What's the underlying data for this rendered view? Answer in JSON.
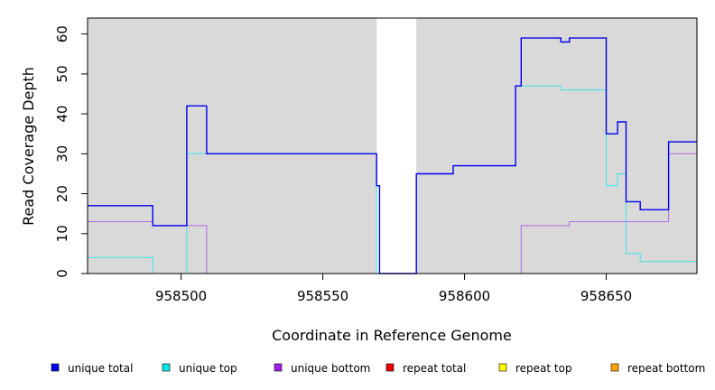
{
  "chart_data": {
    "type": "line",
    "step": true,
    "xlabel": "Coordinate in Reference Genome",
    "ylabel": "Read Coverage Depth",
    "xlim": [
      958467,
      958682
    ],
    "ylim": [
      0,
      64
    ],
    "x_ticks": [
      958500,
      958550,
      958600,
      958650
    ],
    "y_ticks": [
      0,
      10,
      20,
      30,
      40,
      50,
      60
    ],
    "shaded_regions": [
      {
        "from": 958467,
        "to": 958569,
        "color": "#d9d9d9"
      },
      {
        "from": 958583,
        "to": 958682,
        "color": "#d9d9d9"
      }
    ],
    "legend_position": "bottom",
    "series": [
      {
        "name": "unique total",
        "color": "#0000ee",
        "legend_color": "#0000ee",
        "points": [
          [
            958467,
            17
          ],
          [
            958490,
            17
          ],
          [
            958490,
            12
          ],
          [
            958502,
            12
          ],
          [
            958502,
            42
          ],
          [
            958509,
            42
          ],
          [
            958509,
            30
          ],
          [
            958569,
            30
          ],
          [
            958569,
            22
          ],
          [
            958570,
            22
          ],
          [
            958570,
            0
          ],
          [
            958583,
            0
          ],
          [
            958583,
            25
          ],
          [
            958596,
            25
          ],
          [
            958596,
            27
          ],
          [
            958618,
            27
          ],
          [
            958618,
            47
          ],
          [
            958620,
            47
          ],
          [
            958620,
            59
          ],
          [
            958634,
            59
          ],
          [
            958634,
            58
          ],
          [
            958637,
            58
          ],
          [
            958637,
            59
          ],
          [
            958650,
            59
          ],
          [
            958650,
            35
          ],
          [
            958654,
            35
          ],
          [
            958654,
            38
          ],
          [
            958657,
            38
          ],
          [
            958657,
            18
          ],
          [
            958662,
            18
          ],
          [
            958662,
            16
          ],
          [
            958672,
            16
          ],
          [
            958672,
            33
          ],
          [
            958682,
            33
          ]
        ]
      },
      {
        "name": "unique top",
        "color": "#3be6e6",
        "legend_color": "#00e5e5",
        "points": [
          [
            958467,
            4
          ],
          [
            958490,
            4
          ],
          [
            958490,
            0
          ],
          [
            958502,
            0
          ],
          [
            958502,
            30
          ],
          [
            958569,
            30
          ],
          [
            958569,
            0
          ],
          [
            958583,
            0
          ],
          [
            958583,
            25
          ],
          [
            958596,
            25
          ],
          [
            958596,
            27
          ],
          [
            958618,
            27
          ],
          [
            958618,
            47
          ],
          [
            958634,
            47
          ],
          [
            958634,
            46
          ],
          [
            958650,
            46
          ],
          [
            958650,
            22
          ],
          [
            958654,
            22
          ],
          [
            958654,
            25
          ],
          [
            958657,
            25
          ],
          [
            958657,
            5
          ],
          [
            958662,
            5
          ],
          [
            958662,
            3
          ],
          [
            958682,
            3
          ]
        ]
      },
      {
        "name": "unique bottom",
        "color": "#b266e6",
        "legend_color": "#a020f0",
        "points": [
          [
            958467,
            13
          ],
          [
            958490,
            13
          ],
          [
            958490,
            12
          ],
          [
            958509,
            12
          ],
          [
            958509,
            0
          ],
          [
            958620,
            0
          ],
          [
            958620,
            12
          ],
          [
            958637,
            12
          ],
          [
            958637,
            13
          ],
          [
            958672,
            13
          ],
          [
            958672,
            30
          ],
          [
            958682,
            30
          ]
        ]
      },
      {
        "name": "repeat total",
        "color": "#ee0000",
        "legend_color": "#ee0000",
        "points": [
          [
            958467,
            0
          ],
          [
            958682,
            0
          ]
        ]
      },
      {
        "name": "repeat top",
        "color": "#eeee00",
        "legend_color": "#ffff00",
        "points": [
          [
            958467,
            0
          ],
          [
            958682,
            0
          ]
        ]
      },
      {
        "name": "repeat bottom",
        "color": "#f0a000",
        "legend_color": "#ffa500",
        "points": [
          [
            958467,
            0
          ],
          [
            958682,
            0
          ]
        ]
      }
    ]
  }
}
